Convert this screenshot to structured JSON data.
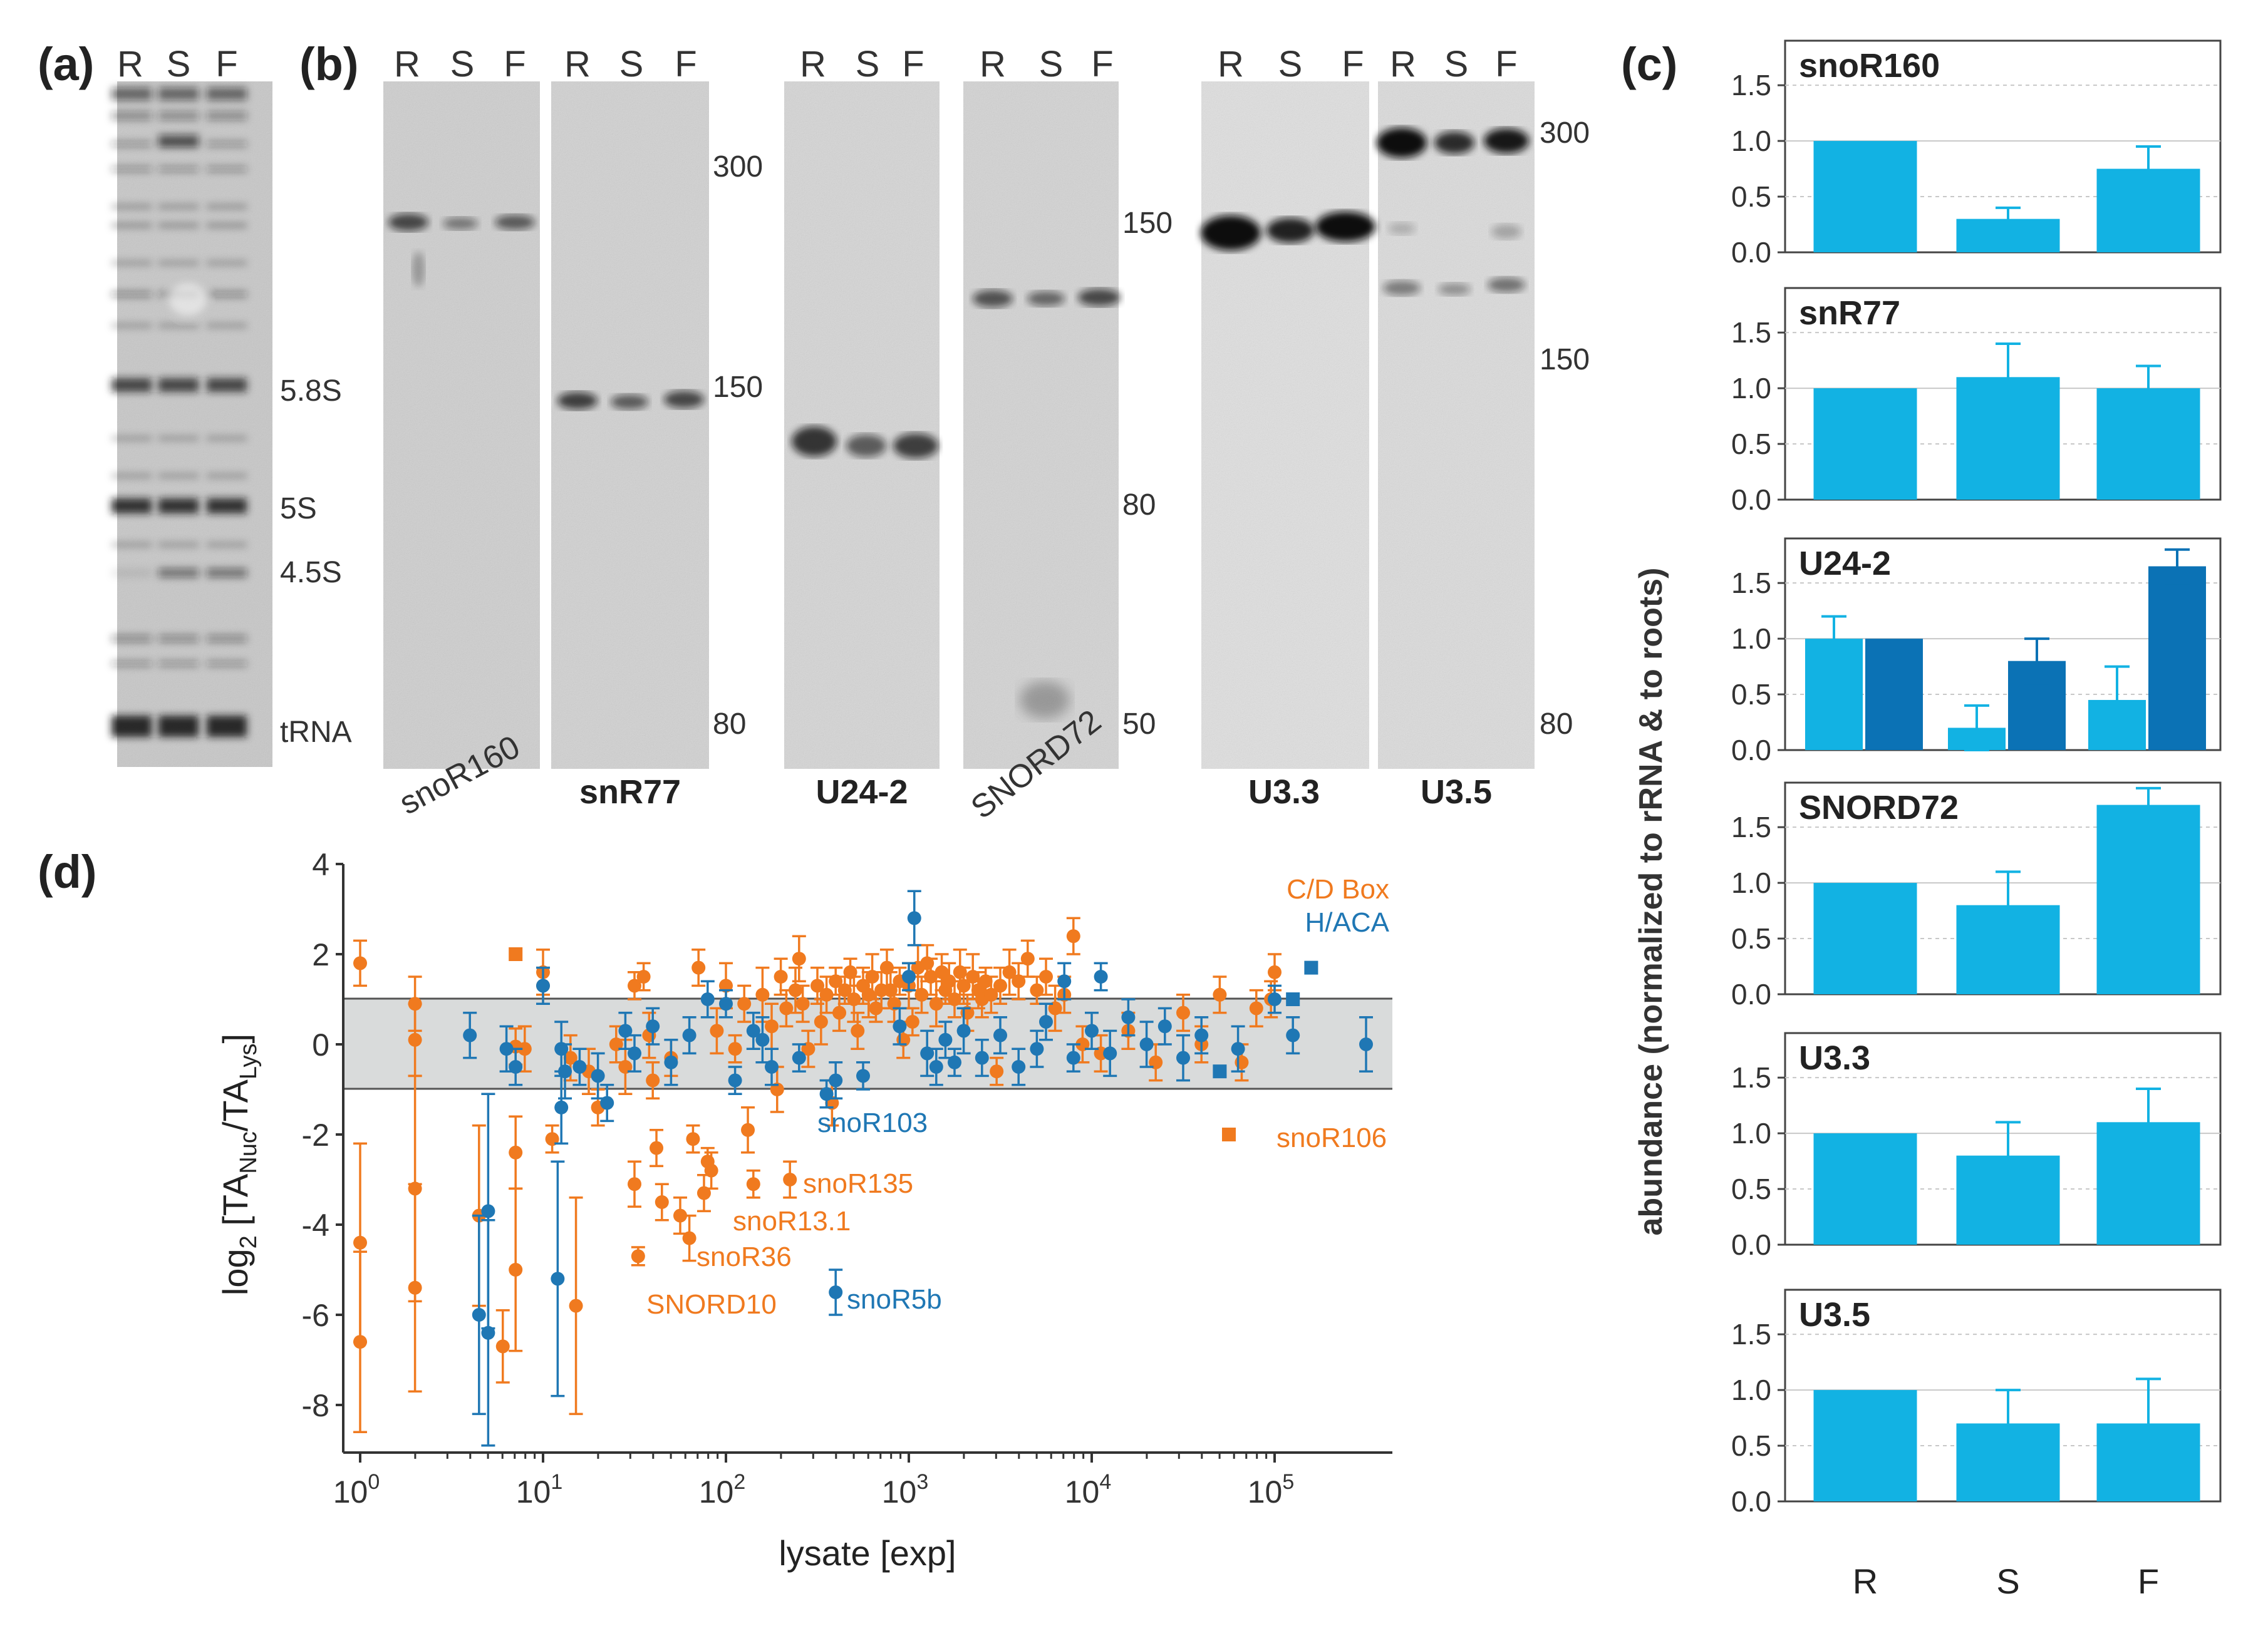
{
  "panel_labels": {
    "a": "(a)",
    "b": "(b)",
    "c": "(c)",
    "d": "(d)"
  },
  "lanes": {
    "r": "R",
    "s": "S",
    "f": "F"
  },
  "panel_a": {
    "markers": [
      "5.8S",
      "5S",
      "4.5S",
      "tRNA"
    ]
  },
  "panel_b": {
    "blots": [
      {
        "name": "snoR160",
        "rotated": true
      },
      {
        "name": "snR77",
        "rotated": false
      },
      {
        "name": "U24-2",
        "rotated": false
      },
      {
        "name": "SNORD72",
        "rotated": true
      },
      {
        "name": "U3.3",
        "rotated": false
      },
      {
        "name": "U3.5",
        "rotated": false
      }
    ],
    "size_markers_1": [
      "300",
      "150",
      "80"
    ],
    "size_markers_2": [
      "150",
      "80",
      "50"
    ],
    "size_markers_3": [
      "300",
      "150",
      "80"
    ]
  },
  "chart_data": [
    {
      "type": "bar",
      "panel": "c",
      "ylabel": "abundance (normalized to rRNA & to roots)",
      "categories": [
        "R",
        "S",
        "F"
      ],
      "yticks": [
        "0.0",
        "0.5",
        "1.0",
        "1.5"
      ],
      "ylim": [
        0,
        1.9
      ],
      "subplots": [
        {
          "title": "snoR160",
          "series": [
            {
              "name": "light",
              "values": [
                1.0,
                0.3,
                0.75
              ],
              "errors": [
                0,
                0.1,
                0.2
              ]
            }
          ]
        },
        {
          "title": "snR77",
          "series": [
            {
              "name": "light",
              "values": [
                1.0,
                1.1,
                1.0
              ],
              "errors": [
                0,
                0.3,
                0.2
              ]
            }
          ]
        },
        {
          "title": "U24-2",
          "series": [
            {
              "name": "light",
              "values": [
                1.0,
                0.2,
                0.45
              ],
              "errors": [
                0.2,
                0.2,
                0.3
              ]
            },
            {
              "name": "dark",
              "values": [
                1.0,
                0.8,
                1.65
              ],
              "errors": [
                0,
                0.2,
                0.15
              ]
            }
          ]
        },
        {
          "title": "SNORD72",
          "series": [
            {
              "name": "light",
              "values": [
                1.0,
                0.8,
                1.7
              ],
              "errors": [
                0,
                0.3,
                0.15
              ]
            }
          ]
        },
        {
          "title": "U3.3",
          "series": [
            {
              "name": "light",
              "values": [
                1.0,
                0.8,
                1.1
              ],
              "errors": [
                0,
                0.3,
                0.3
              ]
            }
          ]
        },
        {
          "title": "U3.5",
          "series": [
            {
              "name": "light",
              "values": [
                1.0,
                0.7,
                0.7
              ],
              "errors": [
                0,
                0.3,
                0.4
              ]
            }
          ]
        }
      ]
    },
    {
      "type": "scatter",
      "panel": "d",
      "xlabel": "lysate [exp]",
      "ylabel_main": "log",
      "ylabel_sub1": "2",
      "ylabel_mid": " [TA",
      "ylabel_sub2": "Nuc",
      "ylabel_mid2": "/TA",
      "ylabel_sub3": "Lys",
      "ylabel_end": "]",
      "xscale": "log",
      "xlim_log10": [
        -0.1,
        5.8
      ],
      "ylim": [
        -9,
        4
      ],
      "yticks": [
        "4",
        "2",
        "0",
        "-2",
        "-4",
        "-6",
        "-8"
      ],
      "xticks": [
        {
          "base": "10",
          "exp": "0"
        },
        {
          "base": "10",
          "exp": "1"
        },
        {
          "base": "10",
          "exp": "2"
        },
        {
          "base": "10",
          "exp": "3"
        },
        {
          "base": "10",
          "exp": "4"
        },
        {
          "base": "10",
          "exp": "5"
        }
      ],
      "band": [
        -1,
        1
      ],
      "legend": [
        {
          "name": "C/D Box",
          "color": "#f07a1f"
        },
        {
          "name": "H/ACA",
          "color": "#1f77b4"
        }
      ],
      "annotations": [
        {
          "text": "snoR103",
          "color": "#1f77b4"
        },
        {
          "text": "snoR106",
          "color": "#f07a1f"
        },
        {
          "text": "snoR135",
          "color": "#f07a1f"
        },
        {
          "text": "snoR13.1",
          "color": "#f07a1f"
        },
        {
          "text": "snoR36",
          "color": "#f07a1f"
        },
        {
          "text": "SNORD10",
          "color": "#f07a1f"
        },
        {
          "text": "snoR5b",
          "color": "#1f77b4"
        }
      ],
      "points_cd": [
        [
          0,
          1.8,
          0.5
        ],
        [
          0,
          -4.4,
          2.2
        ],
        [
          0,
          -6.6,
          2
        ],
        [
          0.3,
          0.9,
          0.6
        ],
        [
          0.3,
          0.1,
          0.8
        ],
        [
          0.3,
          -3.2,
          2.5
        ],
        [
          0.3,
          -5.4,
          2.3
        ],
        [
          0.65,
          -3.8,
          2
        ],
        [
          0.85,
          2,
          0
        ],
        [
          0.85,
          -0.05,
          0.4
        ],
        [
          0.85,
          -2.4,
          0.8
        ],
        [
          0.85,
          -5,
          1.8
        ],
        [
          0.78,
          -6.7,
          0.8
        ],
        [
          0.9,
          -0.1,
          0.5
        ],
        [
          1,
          1.6,
          0.5
        ],
        [
          1,
          1.3,
          0.4
        ],
        [
          1.05,
          -2.1,
          0.3
        ],
        [
          1.15,
          -0.3,
          0.5
        ],
        [
          1.18,
          -5.8,
          2.4
        ],
        [
          1.25,
          -0.6,
          0.5
        ],
        [
          1.3,
          -1.4,
          0.4
        ],
        [
          1.4,
          0,
          0.4
        ],
        [
          1.45,
          -0.5,
          0.6
        ],
        [
          1.5,
          1.3,
          0.3
        ],
        [
          1.5,
          -3.1,
          0.5
        ],
        [
          1.52,
          -4.7,
          0.2
        ],
        [
          1.55,
          1.5,
          0.3
        ],
        [
          1.58,
          0.2,
          0.5
        ],
        [
          1.6,
          -0.8,
          0.4
        ],
        [
          1.62,
          -2.3,
          0.4
        ],
        [
          1.65,
          -3.5,
          0.4
        ],
        [
          1.7,
          -0.3,
          0.4
        ],
        [
          1.75,
          -3.8,
          0.4
        ],
        [
          1.8,
          -4.3,
          0.5
        ],
        [
          1.82,
          -2.1,
          0.3
        ],
        [
          1.85,
          1.7,
          0.4
        ],
        [
          1.88,
          -3.3,
          0.4
        ],
        [
          1.9,
          -2.6,
          0.3
        ],
        [
          1.92,
          -2.8,
          0.4
        ],
        [
          1.95,
          0.3,
          0.5
        ],
        [
          2,
          1.3,
          0.5
        ],
        [
          2.05,
          -0.1,
          0.3
        ],
        [
          2.1,
          0.9,
          0.4
        ],
        [
          2.12,
          -1.9,
          0.5
        ],
        [
          2.15,
          -3.1,
          0.3
        ],
        [
          2.2,
          1.1,
          0.6
        ],
        [
          2.25,
          0.4,
          0.5
        ],
        [
          2.28,
          -1,
          0.5
        ],
        [
          2.3,
          1.5,
          0.4
        ],
        [
          2.33,
          0.8,
          0.4
        ],
        [
          2.35,
          -3,
          0.4
        ],
        [
          2.38,
          1.2,
          0.5
        ],
        [
          2.4,
          1.9,
          0.5
        ],
        [
          2.42,
          0.9,
          0.4
        ],
        [
          2.45,
          -0.1,
          0.4
        ],
        [
          2.5,
          1.3,
          0.4
        ],
        [
          2.52,
          0.5,
          0.5
        ],
        [
          2.55,
          1.1,
          0.4
        ],
        [
          2.58,
          -1.3,
          0.5
        ],
        [
          2.6,
          1.4,
          0.3
        ],
        [
          2.62,
          0.7,
          0.4
        ],
        [
          2.65,
          1.2,
          0.3
        ],
        [
          2.68,
          1.6,
          0.3
        ],
        [
          2.7,
          1,
          0.5
        ],
        [
          2.72,
          0.3,
          0.4
        ],
        [
          2.75,
          1.3,
          0.4
        ],
        [
          2.78,
          1.1,
          0.5
        ],
        [
          2.8,
          1.5,
          0.5
        ],
        [
          2.82,
          0.8,
          0.3
        ],
        [
          2.85,
          1.2,
          0.4
        ],
        [
          2.88,
          1.7,
          0.4
        ],
        [
          2.9,
          1.2,
          0.4
        ],
        [
          2.92,
          0.9,
          0.4
        ],
        [
          2.95,
          1.4,
          0.3
        ],
        [
          2.97,
          0.1,
          0.4
        ],
        [
          3,
          1.3,
          0.5
        ],
        [
          3.02,
          0.5,
          0.3
        ],
        [
          3.05,
          1.7,
          0.5
        ],
        [
          3.07,
          1.1,
          0.4
        ],
        [
          3.1,
          1.8,
          0.4
        ],
        [
          3.12,
          1.5,
          0.4
        ],
        [
          3.15,
          0.9,
          0.5
        ],
        [
          3.18,
          1.6,
          0.4
        ],
        [
          3.2,
          1.2,
          0.3
        ],
        [
          3.22,
          1.4,
          0.4
        ],
        [
          3.25,
          1,
          0.4
        ],
        [
          3.28,
          1.6,
          0.5
        ],
        [
          3.3,
          1.3,
          0.4
        ],
        [
          3.32,
          0.7,
          0.4
        ],
        [
          3.35,
          1.5,
          0.5
        ],
        [
          3.38,
          1.2,
          0.4
        ],
        [
          3.4,
          1,
          0.4
        ],
        [
          3.42,
          1.4,
          0.3
        ],
        [
          3.45,
          1.1,
          0.4
        ],
        [
          3.48,
          -0.6,
          0.3
        ],
        [
          3.5,
          1.3,
          0.4
        ],
        [
          3.55,
          1.6,
          0.5
        ],
        [
          3.6,
          1.4,
          0.4
        ],
        [
          3.65,
          1.9,
          0.4
        ],
        [
          3.7,
          1.2,
          0.3
        ],
        [
          3.75,
          1.5,
          0.4
        ],
        [
          3.8,
          0.8,
          0.5
        ],
        [
          3.85,
          1.1,
          0.4
        ],
        [
          3.9,
          2.4,
          0.4
        ],
        [
          3.95,
          0,
          0.4
        ],
        [
          4.05,
          -0.2,
          0.4
        ],
        [
          4.2,
          0.3,
          0.4
        ],
        [
          4.35,
          -0.4,
          0.4
        ],
        [
          4.5,
          0.7,
          0.4
        ],
        [
          4.6,
          0,
          0.4
        ],
        [
          4.7,
          1.1,
          0.4
        ],
        [
          4.82,
          -0.4,
          0.4
        ],
        [
          4.9,
          0.8,
          0.4
        ],
        [
          4.98,
          1,
          0.4
        ],
        [
          5,
          1.6,
          0.4
        ],
        [
          4.75,
          -2,
          0
        ]
      ],
      "points_haca": [
        [
          0.6,
          0.2,
          0.5
        ],
        [
          0.65,
          -6,
          2.2
        ],
        [
          0.7,
          -3.7,
          2.6
        ],
        [
          0.7,
          -6.4,
          2.5
        ],
        [
          0.8,
          -0.1,
          0.5
        ],
        [
          0.85,
          -0.5,
          0.4
        ],
        [
          1,
          1.3,
          0.4
        ],
        [
          1.08,
          -5.2,
          2.6
        ],
        [
          1.1,
          -0.1,
          0.6
        ],
        [
          1.1,
          -1.4,
          0.8
        ],
        [
          1.12,
          -0.6,
          0.6
        ],
        [
          1.2,
          -0.5,
          0.4
        ],
        [
          1.3,
          -0.7,
          0.5
        ],
        [
          1.35,
          -1.3,
          0.4
        ],
        [
          1.45,
          0.3,
          0.4
        ],
        [
          1.5,
          -0.2,
          0.4
        ],
        [
          1.6,
          0.4,
          0.4
        ],
        [
          1.7,
          -0.4,
          0.5
        ],
        [
          1.8,
          0.2,
          0.4
        ],
        [
          1.9,
          1,
          0.4
        ],
        [
          2,
          0.9,
          0.3
        ],
        [
          2.05,
          -0.8,
          0.3
        ],
        [
          2.15,
          0.3,
          0.4
        ],
        [
          2.2,
          0.1,
          0.5
        ],
        [
          2.25,
          -0.5,
          0.4
        ],
        [
          2.4,
          -0.3,
          0.3
        ],
        [
          2.55,
          -1.1,
          0.3
        ],
        [
          2.6,
          -0.8,
          0.4
        ],
        [
          2.75,
          -0.7,
          0.3
        ],
        [
          2.6,
          -5.5,
          0.5
        ],
        [
          2.95,
          0.4,
          0.4
        ],
        [
          3,
          1.5,
          0.3
        ],
        [
          3.03,
          2.8,
          0.6
        ],
        [
          3.1,
          -0.2,
          0.5
        ],
        [
          3.15,
          -0.5,
          0.4
        ],
        [
          3.2,
          0.1,
          0.4
        ],
        [
          3.25,
          -0.4,
          0.3
        ],
        [
          3.3,
          0.3,
          0.5
        ],
        [
          3.4,
          -0.3,
          0.4
        ],
        [
          3.5,
          0.2,
          0.4
        ],
        [
          3.6,
          -0.5,
          0.4
        ],
        [
          3.7,
          -0.1,
          0.4
        ],
        [
          3.75,
          0.5,
          0.4
        ],
        [
          3.85,
          1.4,
          0.4
        ],
        [
          3.9,
          -0.3,
          0.3
        ],
        [
          4,
          0.3,
          0.4
        ],
        [
          4.05,
          1.5,
          0.3
        ],
        [
          4.1,
          -0.2,
          0.5
        ],
        [
          4.2,
          0.6,
          0.4
        ],
        [
          4.3,
          0,
          0.5
        ],
        [
          4.4,
          0.4,
          0.4
        ],
        [
          4.5,
          -0.3,
          0.5
        ],
        [
          4.6,
          0.2,
          0.4
        ],
        [
          4.7,
          -0.6,
          0
        ],
        [
          4.8,
          -0.1,
          0.5
        ],
        [
          5,
          1,
          0.3
        ],
        [
          5.1,
          0.2,
          0.4
        ],
        [
          5.1,
          1,
          0
        ],
        [
          5.2,
          1.7,
          0
        ],
        [
          5.5,
          0,
          0.6
        ]
      ]
    }
  ]
}
